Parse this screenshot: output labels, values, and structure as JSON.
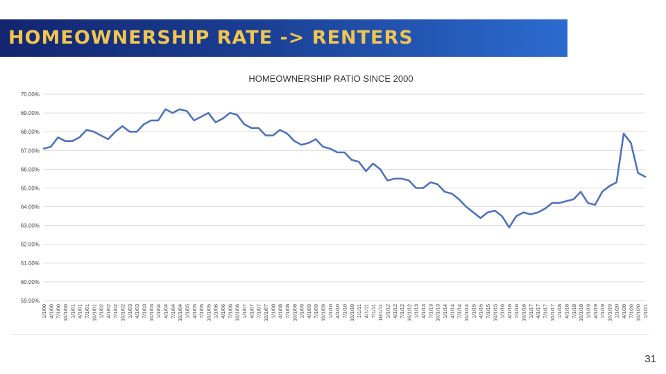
{
  "slide": {
    "title": "HOMEOWNERSHIP RATE -> RENTERS",
    "page_number": "31"
  },
  "colors": {
    "banner_start": "#13256f",
    "banner_end": "#2c6bd0",
    "title_text": "#f0c550",
    "series_line": "#4e73be",
    "gridline": "#d9d9d9"
  },
  "chart_data": {
    "type": "line",
    "title": "HOMEOWNERSHIP RATIO SINCE 2000",
    "xlabel": "",
    "ylabel": "",
    "ylim": [
      59,
      70
    ],
    "y_ticks": [
      59,
      60,
      61,
      62,
      63,
      64,
      65,
      66,
      67,
      68,
      69,
      70
    ],
    "y_tick_format": "percent_2dp",
    "grid": true,
    "legend": "none",
    "x": [
      "1/1/00",
      "4/1/00",
      "7/1/00",
      "10/1/00",
      "1/1/01",
      "4/1/01",
      "7/1/01",
      "10/1/01",
      "1/1/02",
      "4/1/02",
      "7/1/02",
      "10/1/02",
      "1/1/03",
      "4/1/03",
      "7/1/03",
      "10/1/03",
      "1/1/04",
      "4/1/04",
      "7/1/04",
      "10/1/04",
      "1/1/05",
      "4/1/05",
      "7/1/05",
      "10/1/05",
      "1/1/06",
      "4/1/06",
      "7/1/06",
      "10/1/06",
      "1/1/07",
      "4/1/07",
      "7/1/07",
      "10/1/07",
      "1/1/08",
      "4/1/08",
      "7/1/08",
      "10/1/08",
      "1/1/09",
      "4/1/09",
      "7/1/09",
      "10/1/09",
      "1/1/10",
      "4/1/10",
      "7/1/10",
      "10/1/10",
      "1/1/11",
      "4/1/11",
      "7/1/11",
      "10/1/11",
      "1/1/12",
      "4/1/12",
      "7/1/12",
      "10/1/12",
      "1/1/13",
      "4/1/13",
      "7/1/13",
      "10/1/13",
      "1/1/14",
      "4/1/14",
      "7/1/14",
      "10/1/14",
      "1/1/15",
      "4/1/15",
      "7/1/15",
      "10/1/15",
      "1/1/16",
      "4/1/16",
      "7/1/16",
      "10/1/16",
      "1/1/17",
      "4/1/17",
      "7/1/17",
      "10/1/17",
      "1/1/18",
      "4/1/18",
      "7/1/18",
      "10/1/18",
      "1/1/19",
      "4/1/19",
      "7/1/19",
      "10/1/19",
      "1/1/20",
      "4/1/20",
      "7/1/20",
      "10/1/20",
      "1/1/21"
    ],
    "series": [
      {
        "values": [
          67.1,
          67.2,
          67.7,
          67.5,
          67.5,
          67.7,
          68.1,
          68.0,
          67.8,
          67.6,
          68.0,
          68.3,
          68.0,
          68.0,
          68.4,
          68.6,
          68.6,
          69.2,
          69.0,
          69.2,
          69.1,
          68.6,
          68.8,
          69.0,
          68.5,
          68.7,
          69.0,
          68.9,
          68.4,
          68.2,
          68.2,
          67.8,
          67.8,
          68.1,
          67.9,
          67.5,
          67.3,
          67.4,
          67.6,
          67.2,
          67.1,
          66.9,
          66.9,
          66.5,
          66.4,
          65.9,
          66.3,
          66.0,
          65.4,
          65.5,
          65.5,
          65.4,
          65.0,
          65.0,
          65.3,
          65.2,
          64.8,
          64.7,
          64.4,
          64.0,
          63.7,
          63.4,
          63.7,
          63.8,
          63.5,
          62.9,
          63.5,
          63.7,
          63.6,
          63.7,
          63.9,
          64.2,
          64.2,
          64.3,
          64.4,
          64.8,
          64.2,
          64.1,
          64.8,
          65.1,
          65.3,
          67.9,
          67.4,
          65.8,
          65.6
        ]
      }
    ]
  }
}
